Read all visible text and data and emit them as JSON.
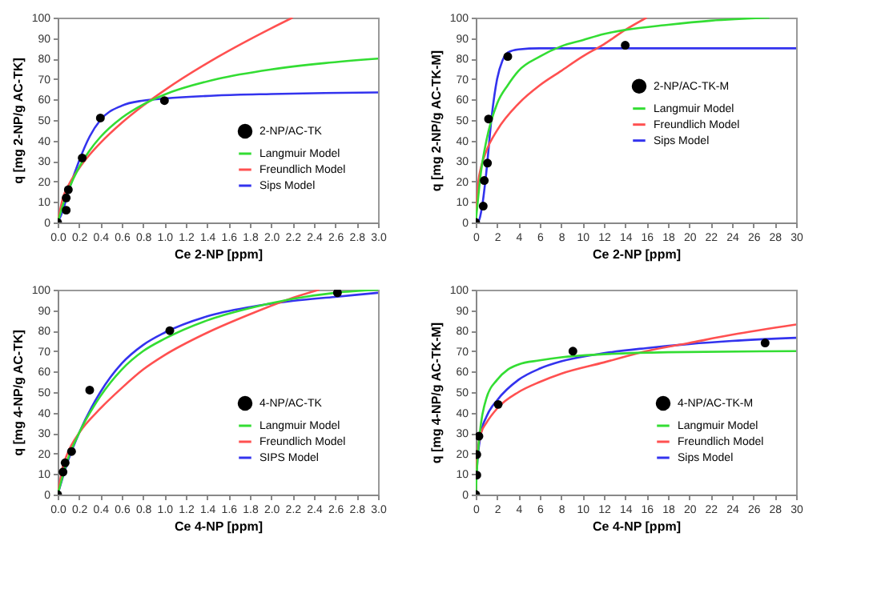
{
  "chart_data": [
    {
      "type": "line",
      "xlabel": "Ce 2-NP [ppm]",
      "ylabel": "q [mg 2-NP/g AC-TK]",
      "xlim": [
        0,
        3
      ],
      "ylim": [
        0,
        100
      ],
      "xticks": [
        {
          "value": 0,
          "label": "0.0"
        },
        {
          "value": 0.2,
          "label": "0.2"
        },
        {
          "value": 0.4,
          "label": "0.4"
        },
        {
          "value": 0.6,
          "label": "0.6"
        },
        {
          "value": 0.8,
          "label": "0.8"
        },
        {
          "value": 1,
          "label": "1.0"
        },
        {
          "value": 1.2,
          "label": "1.2"
        },
        {
          "value": 1.4,
          "label": "1.4"
        },
        {
          "value": 1.6,
          "label": "1.6"
        },
        {
          "value": 1.8,
          "label": "1.8"
        },
        {
          "value": 2,
          "label": "2.0"
        },
        {
          "value": 2.2,
          "label": "2.2"
        },
        {
          "value": 2.4,
          "label": "2.4"
        },
        {
          "value": 2.6,
          "label": "2.6"
        },
        {
          "value": 2.8,
          "label": "2.8"
        },
        {
          "value": 3,
          "label": "3.0"
        }
      ],
      "yticks": [
        0,
        10,
        20,
        30,
        40,
        50,
        60,
        70,
        80,
        90,
        100
      ],
      "legend": "bottom right",
      "grid": false,
      "series": [
        {
          "name": "2-NP/AC-TK",
          "type": "scatter",
          "marker": "circle",
          "color": "#000000",
          "x": [
            0,
            0.08,
            0.08,
            0.1,
            0.23,
            0.4,
            1.0
          ],
          "values": [
            0,
            6,
            12,
            16,
            31.5,
            51,
            59.5
          ]
        },
        {
          "name": "Langmuir Model",
          "color": "#33dd33",
          "x": [
            0,
            0.05,
            0.1,
            0.2,
            0.3,
            0.4,
            0.6,
            0.8,
            1.0,
            1.5,
            2.0,
            2.5,
            3.0
          ],
          "values": [
            0,
            8.6,
            15.7,
            26.9,
            35.2,
            41.7,
            51.1,
            57.6,
            62.4,
            70.1,
            74.7,
            77.8,
            80
          ]
        },
        {
          "name": "Freundlich Model",
          "color": "#ff5050",
          "x": [
            0,
            0.05,
            0.1,
            0.2,
            0.3,
            0.4,
            0.6,
            0.8,
            1.0,
            1.5,
            2.0,
            2.2
          ],
          "values": [
            0,
            12.2,
            18,
            26.4,
            33.1,
            38.8,
            48.6,
            57,
            64.5,
            80.8,
            94.8,
            100
          ]
        },
        {
          "name": "Sips Model",
          "color": "#3333ee",
          "x": [
            0,
            0.05,
            0.1,
            0.2,
            0.3,
            0.4,
            0.6,
            0.8,
            1.0,
            1.5,
            2.0,
            2.5,
            3.0
          ],
          "values": [
            0,
            6,
            15,
            30,
            42,
            50,
            57,
            59.5,
            60.5,
            62,
            62.7,
            63.2,
            63.5
          ]
        }
      ]
    },
    {
      "type": "line",
      "xlabel": "Ce 2-NP [ppm]",
      "ylabel": "q [mg 2-NP/g AC-TK-M]",
      "xlim": [
        0,
        30
      ],
      "ylim": [
        0,
        100
      ],
      "xticks": [
        0,
        2,
        4,
        6,
        8,
        10,
        12,
        14,
        16,
        18,
        20,
        22,
        24,
        26,
        28,
        30
      ],
      "yticks": [
        0,
        10,
        20,
        30,
        40,
        50,
        60,
        70,
        80,
        90,
        100
      ],
      "legend": "right",
      "grid": false,
      "series": [
        {
          "name": "2-NP/AC-TK-M",
          "type": "scatter",
          "marker": "circle",
          "color": "#000000",
          "x": [
            0,
            0.7,
            0.8,
            1.1,
            1.2,
            3,
            14
          ],
          "values": [
            0,
            8,
            20.5,
            29,
            50.5,
            81,
            86.5
          ]
        },
        {
          "name": "Langmuir Model",
          "color": "#33dd33",
          "x": [
            0,
            0.5,
            1,
            2,
            3,
            4,
            6,
            8,
            10,
            12,
            14,
            18,
            22,
            27.5
          ],
          "values": [
            0,
            25,
            40,
            58,
            67,
            74,
            81,
            86,
            89,
            92,
            94,
            96.5,
            98.5,
            100
          ]
        },
        {
          "name": "Freundlich Model",
          "color": "#ff5050",
          "x": [
            0,
            0.25,
            0.5,
            1,
            2,
            4,
            6,
            8,
            10,
            12,
            14,
            16
          ],
          "values": [
            0,
            20,
            27,
            35,
            45,
            58,
            67,
            74,
            81,
            87,
            94,
            100
          ]
        },
        {
          "name": "Sips Model",
          "color": "#3333ee",
          "x": [
            0,
            0.3,
            0.6,
            1,
            1.5,
            2,
            2.5,
            3,
            4,
            6,
            30
          ],
          "values": [
            0,
            1,
            8,
            25,
            52,
            70,
            79,
            83,
            84.5,
            85,
            85
          ]
        }
      ]
    },
    {
      "type": "line",
      "xlabel": "Ce 4-NP [ppm]",
      "ylabel": "q [mg 4-NP/g AC-TK]",
      "xlim": [
        0,
        3
      ],
      "ylim": [
        0,
        100
      ],
      "xticks": [
        {
          "value": 0,
          "label": "0.0"
        },
        {
          "value": 0.2,
          "label": "0.2"
        },
        {
          "value": 0.4,
          "label": "0.4"
        },
        {
          "value": 0.6,
          "label": "0.6"
        },
        {
          "value": 0.8,
          "label": "0.8"
        },
        {
          "value": 1,
          "label": "1.0"
        },
        {
          "value": 1.2,
          "label": "1.2"
        },
        {
          "value": 1.4,
          "label": "1.4"
        },
        {
          "value": 1.6,
          "label": "1.6"
        },
        {
          "value": 1.8,
          "label": "1.8"
        },
        {
          "value": 2,
          "label": "2.0"
        },
        {
          "value": 2.2,
          "label": "2.2"
        },
        {
          "value": 2.4,
          "label": "2.4"
        },
        {
          "value": 2.6,
          "label": "2.6"
        },
        {
          "value": 2.8,
          "label": "2.8"
        },
        {
          "value": 3,
          "label": "3.0"
        }
      ],
      "yticks": [
        0,
        10,
        20,
        30,
        40,
        50,
        60,
        70,
        80,
        90,
        100
      ],
      "legend": "bottom right",
      "grid": false,
      "series": [
        {
          "name": "4-NP/AC-TK",
          "type": "scatter",
          "marker": "circle",
          "color": "#000000",
          "x": [
            0,
            0.05,
            0.07,
            0.13,
            0.3,
            1.05,
            2.62
          ],
          "values": [
            0,
            11,
            15.5,
            21,
            51,
            80,
            98.5
          ]
        },
        {
          "name": "Langmuir Model",
          "color": "#33dd33",
          "x": [
            0,
            0.1,
            0.2,
            0.4,
            0.6,
            0.8,
            1.0,
            1.4,
            1.8,
            2.2,
            2.6,
            3.0
          ],
          "values": [
            0,
            18,
            30,
            48,
            61,
            70,
            76,
            85,
            91,
            95.5,
            98.5,
            100
          ]
        },
        {
          "name": "Freundlich Model",
          "color": "#ff5050",
          "x": [
            0,
            0.05,
            0.1,
            0.2,
            0.4,
            0.6,
            0.8,
            1.0,
            1.4,
            1.8,
            2.2,
            2.45
          ],
          "values": [
            0,
            14,
            21,
            30,
            42,
            52,
            61,
            68,
            79,
            88,
            96,
            100
          ]
        },
        {
          "name": "SIPS Model",
          "color": "#3333ee",
          "x": [
            0,
            0.1,
            0.2,
            0.4,
            0.6,
            0.8,
            1.0,
            1.4,
            1.8,
            2.2,
            2.6,
            3.0
          ],
          "values": [
            0,
            17,
            30,
            50,
            64,
            73,
            79,
            87,
            91.5,
            94.5,
            96.5,
            98.5
          ]
        }
      ]
    },
    {
      "type": "line",
      "xlabel": "Ce 4-NP [ppm]",
      "ylabel": "q [mg 4-NP/g AC-TK-M]",
      "xlim": [
        0,
        30
      ],
      "ylim": [
        0,
        100
      ],
      "xticks": [
        0,
        2,
        4,
        6,
        8,
        10,
        12,
        14,
        16,
        18,
        20,
        22,
        24,
        26,
        28,
        30
      ],
      "yticks": [
        0,
        10,
        20,
        30,
        40,
        50,
        60,
        70,
        80,
        90,
        100
      ],
      "legend": "bottom right",
      "grid": false,
      "series": [
        {
          "name": "4-NP/AC-TK-M",
          "type": "scatter",
          "marker": "circle",
          "color": "#000000",
          "x": [
            0,
            0.1,
            0.1,
            0.3,
            2.1,
            9.1,
            27.1
          ],
          "values": [
            0,
            9.5,
            19.5,
            28.5,
            44,
            70,
            74
          ]
        },
        {
          "name": "Langmuir Model",
          "color": "#33dd33",
          "x": [
            0,
            0.2,
            0.5,
            1,
            2,
            3,
            4,
            6,
            8,
            12,
            18,
            30
          ],
          "values": [
            0,
            20,
            35,
            47,
            56,
            61,
            63.5,
            65.5,
            67,
            68.5,
            69.5,
            70
          ]
        },
        {
          "name": "Freundlich Model",
          "color": "#ff5050",
          "x": [
            0,
            0.1,
            0.5,
            1,
            2,
            4,
            6,
            8,
            12,
            16,
            20,
            24,
            30
          ],
          "values": [
            0,
            18,
            30,
            35,
            42,
            50,
            55,
            59,
            64.5,
            70,
            74,
            78,
            83
          ]
        },
        {
          "name": "Sips Model",
          "color": "#3333ee",
          "x": [
            0,
            0.1,
            0.5,
            1,
            2,
            4,
            6,
            8,
            12,
            16,
            20,
            24,
            30
          ],
          "values": [
            0,
            12,
            30,
            38,
            46,
            56,
            61.5,
            65,
            69,
            71.5,
            73.5,
            75,
            76.5
          ]
        }
      ]
    }
  ]
}
